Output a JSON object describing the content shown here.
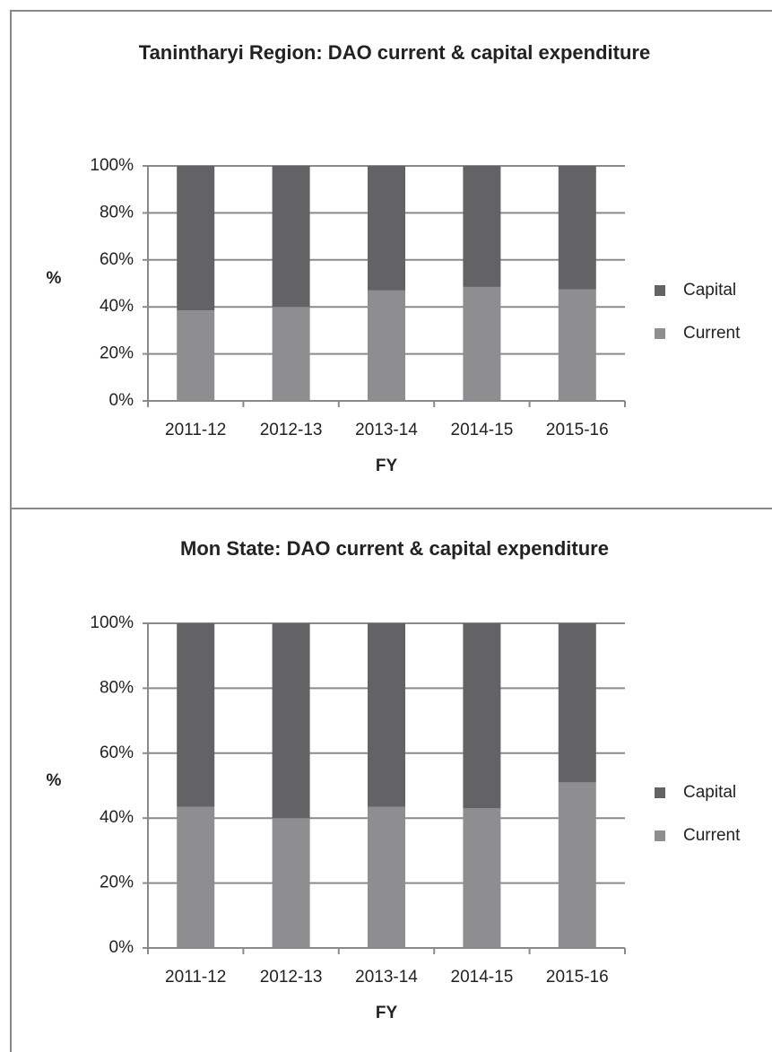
{
  "chart_data": [
    {
      "type": "bar",
      "stacked": true,
      "title": "Tanintharyi Region: DAO current & capital expenditure",
      "xlabel": "FY",
      "ylabel": "%",
      "categories": [
        "2011-12",
        "2012-13",
        "2013-14",
        "2014-15",
        "2015-16"
      ],
      "series": [
        {
          "name": "Current",
          "color": "#8e8e91",
          "values": [
            38.5,
            40,
            47,
            48.5,
            47.5
          ]
        },
        {
          "name": "Capital",
          "color": "#636366",
          "values": [
            61.5,
            60,
            53,
            51.5,
            52.5
          ]
        }
      ],
      "ylim": [
        0,
        100
      ],
      "yticks": [
        {
          "value": 0,
          "label": "0%"
        },
        {
          "value": 20,
          "label": "20%"
        },
        {
          "value": 40,
          "label": "40%"
        },
        {
          "value": 60,
          "label": "60%"
        },
        {
          "value": 80,
          "label": "80%"
        },
        {
          "value": 100,
          "label": "100%"
        }
      ],
      "grid": true,
      "legend": "right"
    },
    {
      "type": "bar",
      "stacked": true,
      "title": "Mon State: DAO current & capital expenditure",
      "xlabel": "FY",
      "ylabel": "%",
      "categories": [
        "2011-12",
        "2012-13",
        "2013-14",
        "2014-15",
        "2015-16"
      ],
      "series": [
        {
          "name": "Current",
          "color": "#8e8e91",
          "values": [
            43.5,
            40,
            43.5,
            43,
            51
          ]
        },
        {
          "name": "Capital",
          "color": "#636366",
          "values": [
            56.5,
            60,
            56.5,
            57,
            49
          ]
        }
      ],
      "ylim": [
        0,
        100
      ],
      "yticks": [
        {
          "value": 0,
          "label": "0%"
        },
        {
          "value": 20,
          "label": "20%"
        },
        {
          "value": 40,
          "label": "40%"
        },
        {
          "value": 60,
          "label": "60%"
        },
        {
          "value": 80,
          "label": "80%"
        },
        {
          "value": 100,
          "label": "100%"
        }
      ],
      "grid": true,
      "legend": "right"
    }
  ]
}
